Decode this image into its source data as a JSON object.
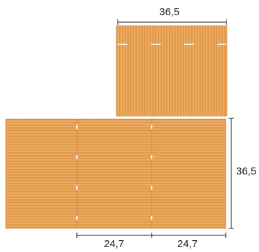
{
  "dimensions": {
    "top_width": "36,5",
    "right_height": "36,5",
    "bottom_left_width": "24,7",
    "bottom_right_width": "24,7"
  },
  "colors": {
    "block_fill": "#e8a457",
    "block_stripe": "#d68a3a",
    "block_highlight": "#f2bf7e",
    "mortar": "#f3efe8",
    "dimension_line": "#1a1a1a"
  }
}
